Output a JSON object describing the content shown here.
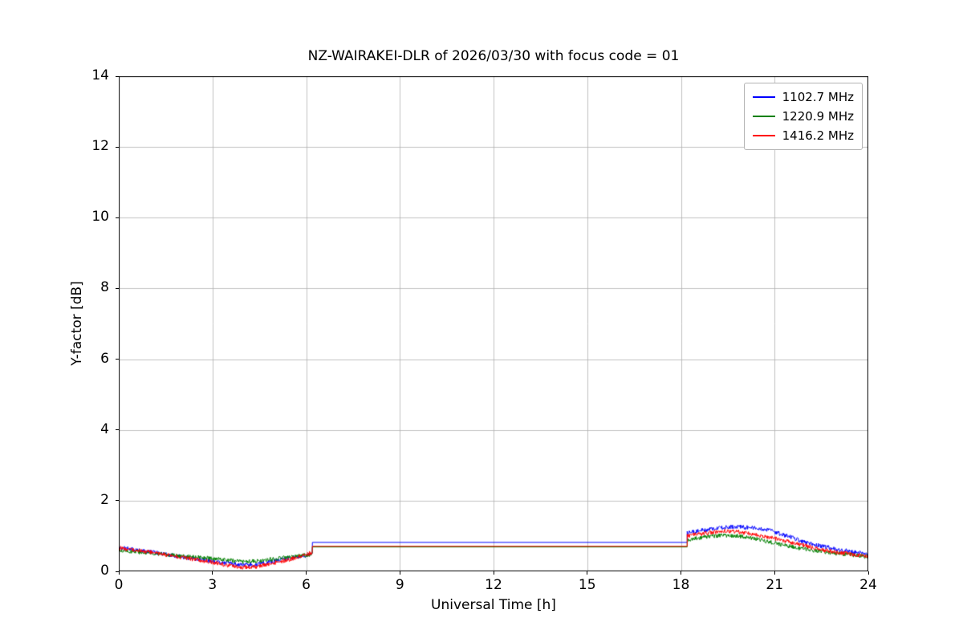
{
  "chart_data": {
    "type": "line",
    "title": "NZ-WAIRAKEI-DLR of 2026/03/30 with focus code = 01",
    "xlabel": "Universal Time [h]",
    "ylabel": "Y-factor [dB]",
    "xlim": [
      0,
      24
    ],
    "ylim": [
      0,
      14
    ],
    "xticks": [
      0,
      3,
      6,
      9,
      12,
      15,
      18,
      21,
      24
    ],
    "yticks": [
      0,
      2,
      4,
      6,
      8,
      10,
      12,
      14
    ],
    "grid": true,
    "grid_color": "#b0b0b0",
    "legend_position": "upper right",
    "noise_amplitude": 0.06,
    "noise_step_hours": 0.015,
    "series": [
      {
        "label": "1102.7 MHz",
        "color": "#0000ff",
        "segments": [
          {
            "type": "noisy",
            "points": [
              [
                0,
                0.68
              ],
              [
                0.3,
                0.64
              ],
              [
                0.8,
                0.58
              ],
              [
                1.3,
                0.52
              ],
              [
                1.8,
                0.44
              ],
              [
                2.3,
                0.37
              ],
              [
                2.8,
                0.32
              ],
              [
                3.3,
                0.25
              ],
              [
                3.8,
                0.2
              ],
              [
                4.2,
                0.18
              ],
              [
                4.6,
                0.22
              ],
              [
                5,
                0.3
              ],
              [
                5.5,
                0.38
              ],
              [
                6,
                0.45
              ],
              [
                6.2,
                0.48
              ]
            ]
          },
          {
            "type": "smooth",
            "points": [
              [
                6.2,
                0.82
              ],
              [
                18.2,
                0.82
              ]
            ]
          },
          {
            "type": "noisy",
            "points": [
              [
                18.2,
                1.08
              ],
              [
                18.6,
                1.15
              ],
              [
                19,
                1.2
              ],
              [
                19.4,
                1.24
              ],
              [
                19.8,
                1.26
              ],
              [
                20.2,
                1.24
              ],
              [
                20.6,
                1.2
              ],
              [
                21,
                1.12
              ],
              [
                21.4,
                1.0
              ],
              [
                21.8,
                0.88
              ],
              [
                22.2,
                0.78
              ],
              [
                22.6,
                0.7
              ],
              [
                23,
                0.62
              ],
              [
                23.5,
                0.55
              ],
              [
                24,
                0.5
              ]
            ]
          }
        ]
      },
      {
        "label": "1220.9 MHz",
        "color": "#008000",
        "segments": [
          {
            "type": "noisy",
            "points": [
              [
                0,
                0.6
              ],
              [
                0.5,
                0.56
              ],
              [
                1,
                0.52
              ],
              [
                1.5,
                0.47
              ],
              [
                2,
                0.43
              ],
              [
                2.5,
                0.4
              ],
              [
                3,
                0.37
              ],
              [
                3.5,
                0.32
              ],
              [
                4,
                0.27
              ],
              [
                4.5,
                0.3
              ],
              [
                5,
                0.35
              ],
              [
                5.5,
                0.41
              ],
              [
                6,
                0.46
              ],
              [
                6.2,
                0.48
              ]
            ]
          },
          {
            "type": "smooth",
            "points": [
              [
                6.2,
                0.69
              ],
              [
                18.2,
                0.69
              ]
            ]
          },
          {
            "type": "noisy",
            "points": [
              [
                18.2,
                0.88
              ],
              [
                18.6,
                0.95
              ],
              [
                19,
                1.0
              ],
              [
                19.4,
                1.02
              ],
              [
                19.8,
                1.0
              ],
              [
                20.2,
                0.95
              ],
              [
                20.6,
                0.88
              ],
              [
                21,
                0.8
              ],
              [
                21.4,
                0.72
              ],
              [
                21.8,
                0.65
              ],
              [
                22.2,
                0.6
              ],
              [
                22.6,
                0.55
              ],
              [
                23,
                0.5
              ],
              [
                23.5,
                0.46
              ],
              [
                24,
                0.42
              ]
            ]
          }
        ]
      },
      {
        "label": "1416.2 MHz",
        "color": "#ff0000",
        "segments": [
          {
            "type": "noisy",
            "points": [
              [
                0,
                0.66
              ],
              [
                0.5,
                0.6
              ],
              [
                1,
                0.54
              ],
              [
                1.5,
                0.47
              ],
              [
                2,
                0.4
              ],
              [
                2.5,
                0.33
              ],
              [
                3,
                0.26
              ],
              [
                3.5,
                0.17
              ],
              [
                4,
                0.11
              ],
              [
                4.4,
                0.13
              ],
              [
                4.8,
                0.2
              ],
              [
                5.2,
                0.28
              ],
              [
                5.6,
                0.37
              ],
              [
                6,
                0.47
              ],
              [
                6.2,
                0.54
              ]
            ]
          },
          {
            "type": "smooth",
            "points": [
              [
                6.2,
                0.71
              ],
              [
                18.2,
                0.71
              ]
            ]
          },
          {
            "type": "noisy",
            "points": [
              [
                18.2,
                1.0
              ],
              [
                18.6,
                1.06
              ],
              [
                19,
                1.1
              ],
              [
                19.4,
                1.14
              ],
              [
                19.8,
                1.12
              ],
              [
                20.2,
                1.06
              ],
              [
                20.6,
                1.0
              ],
              [
                21,
                0.93
              ],
              [
                21.4,
                0.85
              ],
              [
                21.8,
                0.76
              ],
              [
                22.2,
                0.68
              ],
              [
                22.6,
                0.6
              ],
              [
                23,
                0.54
              ],
              [
                23.5,
                0.48
              ],
              [
                24,
                0.44
              ]
            ]
          }
        ]
      }
    ]
  }
}
